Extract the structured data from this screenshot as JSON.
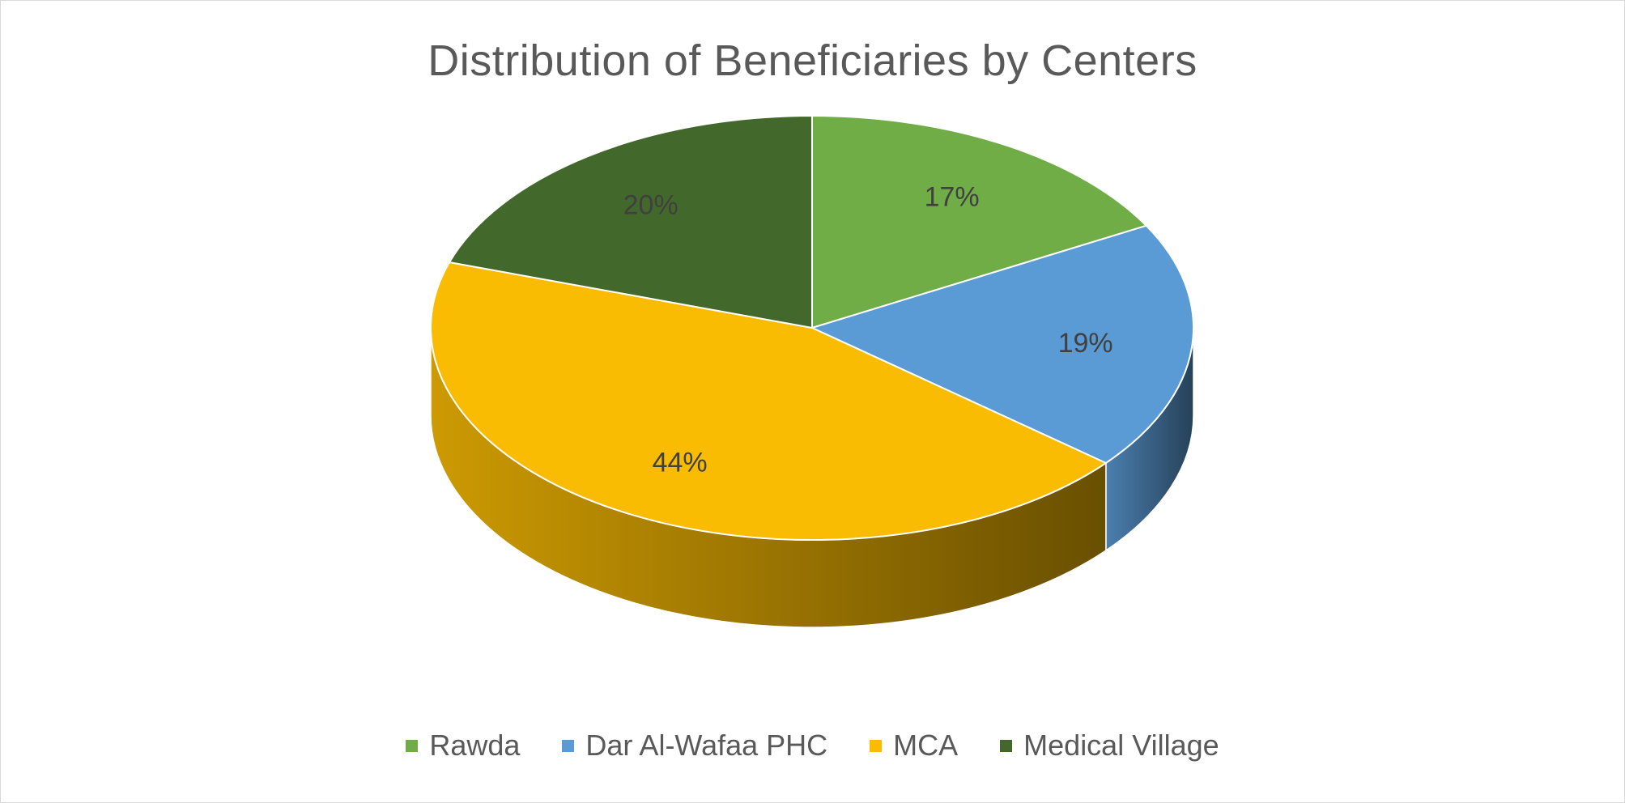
{
  "chart_data": {
    "type": "pie",
    "title": "Distribution of Beneficiaries by Centers",
    "legend_position": "bottom",
    "slices": [
      {
        "label": "Rawda",
        "value": 17,
        "display": "17%",
        "color": "#70ad47"
      },
      {
        "label": "Dar Al-Wafaa PHC",
        "value": 19,
        "display": "19%",
        "color": "#5b9bd5"
      },
      {
        "label": "MCA",
        "value": 44,
        "display": "44%",
        "color": "#fabc02"
      },
      {
        "label": "Medical Village",
        "value": 20,
        "display": "20%",
        "color": "#43682b"
      }
    ]
  }
}
